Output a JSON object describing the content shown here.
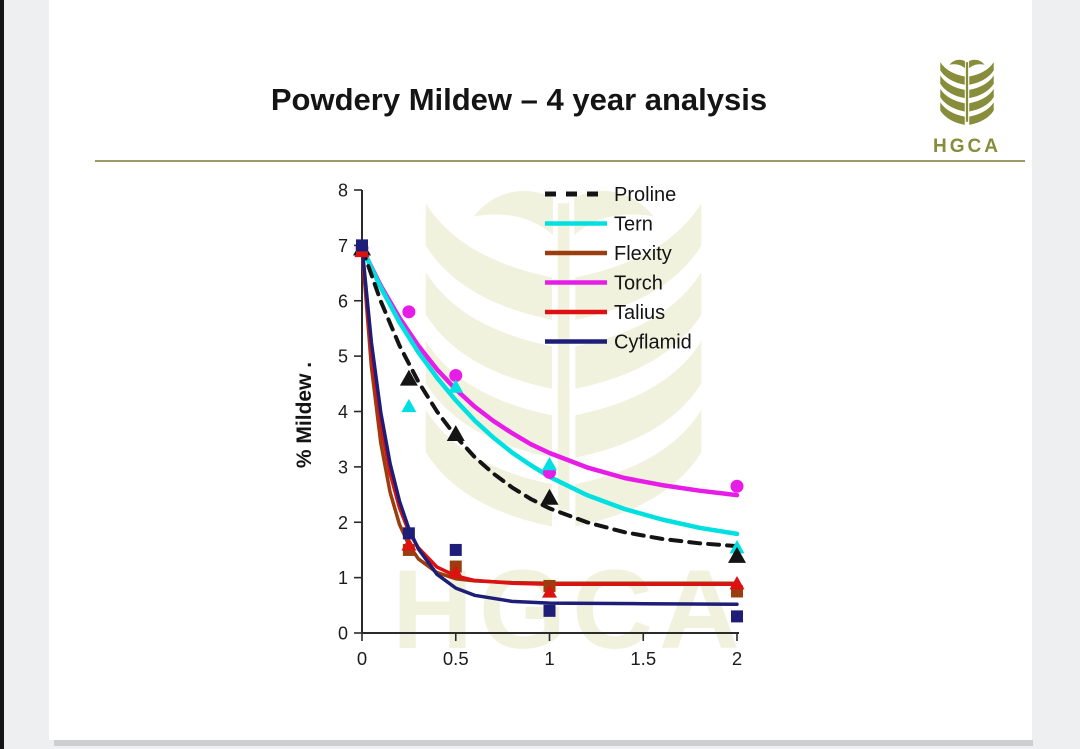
{
  "header": {
    "title": "Powdery Mildew – 4 year analysis",
    "rule_color": "#9b9b67"
  },
  "logo": {
    "text": "HGCA",
    "color": "#878d3b"
  },
  "watermark": {
    "text": "HGCA",
    "color": "#f1f2de"
  },
  "chart_data": {
    "type": "line",
    "title": "",
    "xlabel": "",
    "ylabel": "% Mildew .",
    "xlim": [
      0,
      2
    ],
    "ylim": [
      0,
      8
    ],
    "x_tick_labels": [
      "0",
      "0.5",
      "1",
      "1.5",
      "2"
    ],
    "x_tick_values": [
      0,
      0.5,
      1,
      1.5,
      2
    ],
    "y_tick_labels": [
      "0",
      "1",
      "2",
      "3",
      "4",
      "5",
      "6",
      "7",
      "8"
    ],
    "y_tick_values": [
      0,
      1,
      2,
      3,
      4,
      5,
      6,
      7,
      8
    ],
    "grid": false,
    "legend_position": "inside-top-right",
    "legend_order": [
      "Proline",
      "Tern",
      "Flexity",
      "Torch",
      "Talius",
      "Cyflamid"
    ],
    "series": [
      {
        "name": "Torch",
        "color": "#e71ce7",
        "line_style": "solid",
        "line_width": 4.5,
        "marker": "circle",
        "marker_size": 6.5,
        "points": [
          [
            0,
            6.95
          ],
          [
            0.25,
            5.8
          ],
          [
            0.5,
            4.65
          ],
          [
            1,
            2.9
          ],
          [
            2,
            2.65
          ]
        ],
        "curve": [
          [
            0,
            6.95
          ],
          [
            0.1,
            6.27
          ],
          [
            0.2,
            5.69
          ],
          [
            0.3,
            5.19
          ],
          [
            0.4,
            4.76
          ],
          [
            0.5,
            4.4
          ],
          [
            0.6,
            4.09
          ],
          [
            0.7,
            3.83
          ],
          [
            0.8,
            3.61
          ],
          [
            0.9,
            3.41
          ],
          [
            1,
            3.25
          ],
          [
            1.2,
            2.99
          ],
          [
            1.4,
            2.8
          ],
          [
            1.6,
            2.67
          ],
          [
            1.8,
            2.57
          ],
          [
            2,
            2.49
          ]
        ]
      },
      {
        "name": "Tern",
        "color": "#00e0e0",
        "line_style": "solid",
        "line_width": 4.5,
        "marker": "triangle",
        "marker_size": 7.5,
        "points": [
          [
            0,
            6.95
          ],
          [
            0.25,
            4.1
          ],
          [
            0.5,
            4.45
          ],
          [
            1,
            3.05
          ],
          [
            2,
            1.55
          ]
        ],
        "curve": [
          [
            0,
            6.95
          ],
          [
            0.1,
            6.24
          ],
          [
            0.2,
            5.61
          ],
          [
            0.3,
            5.07
          ],
          [
            0.4,
            4.61
          ],
          [
            0.5,
            4.2
          ],
          [
            0.6,
            3.84
          ],
          [
            0.7,
            3.53
          ],
          [
            0.8,
            3.26
          ],
          [
            0.9,
            3.03
          ],
          [
            1,
            2.82
          ],
          [
            1.2,
            2.49
          ],
          [
            1.4,
            2.24
          ],
          [
            1.6,
            2.05
          ],
          [
            1.8,
            1.9
          ],
          [
            2,
            1.79
          ]
        ]
      },
      {
        "name": "Proline",
        "color": "#141414",
        "line_style": "dashed",
        "line_width": 4,
        "marker": "triangle",
        "marker_size": 9,
        "points": [
          [
            0,
            6.95
          ],
          [
            0.25,
            4.6
          ],
          [
            0.5,
            3.6
          ],
          [
            1,
            2.45
          ],
          [
            2,
            1.4
          ]
        ],
        "curve": [
          [
            0,
            6.95
          ],
          [
            0.1,
            5.99
          ],
          [
            0.2,
            5.19
          ],
          [
            0.3,
            4.54
          ],
          [
            0.4,
            4.0
          ],
          [
            0.5,
            3.55
          ],
          [
            0.6,
            3.18
          ],
          [
            0.7,
            2.88
          ],
          [
            0.8,
            2.63
          ],
          [
            0.9,
            2.42
          ],
          [
            1,
            2.25
          ],
          [
            1.2,
            2.0
          ],
          [
            1.4,
            1.82
          ],
          [
            1.6,
            1.7
          ],
          [
            1.8,
            1.62
          ],
          [
            2,
            1.57
          ]
        ]
      },
      {
        "name": "Flexity",
        "color": "#9a3d0f",
        "line_style": "solid",
        "line_width": 3.5,
        "marker": "square",
        "marker_size": 6,
        "points": [
          [
            0,
            6.9
          ],
          [
            0.25,
            1.5
          ],
          [
            0.5,
            1.2
          ],
          [
            1,
            0.85
          ],
          [
            2,
            0.75
          ]
        ],
        "curve": [
          [
            0,
            6.95
          ],
          [
            0.05,
            4.81
          ],
          [
            0.1,
            3.43
          ],
          [
            0.15,
            2.54
          ],
          [
            0.2,
            1.96
          ],
          [
            0.25,
            1.59
          ],
          [
            0.3,
            1.34
          ],
          [
            0.4,
            1.09
          ],
          [
            0.5,
            0.98
          ],
          [
            0.6,
            0.94
          ],
          [
            0.8,
            0.91
          ],
          [
            1,
            0.9
          ],
          [
            1.5,
            0.9
          ],
          [
            2,
            0.9
          ]
        ]
      },
      {
        "name": "Talius",
        "color": "#dd1111",
        "line_style": "solid",
        "line_width": 3.5,
        "marker": "triangle",
        "marker_size": 7.5,
        "points": [
          [
            0,
            6.9
          ],
          [
            0.25,
            1.6
          ],
          [
            0.5,
            1.1
          ],
          [
            1,
            0.75
          ],
          [
            2,
            0.9
          ]
        ],
        "curve": [
          [
            0,
            6.95
          ],
          [
            0.05,
            5.07
          ],
          [
            0.1,
            3.77
          ],
          [
            0.15,
            2.88
          ],
          [
            0.2,
            2.26
          ],
          [
            0.25,
            1.83
          ],
          [
            0.3,
            1.54
          ],
          [
            0.4,
            1.19
          ],
          [
            0.5,
            1.03
          ],
          [
            0.6,
            0.95
          ],
          [
            0.8,
            0.9
          ],
          [
            1,
            0.88
          ],
          [
            1.5,
            0.88
          ],
          [
            2,
            0.88
          ]
        ]
      },
      {
        "name": "Cyflamid",
        "color": "#1e1e78",
        "line_style": "solid",
        "line_width": 3.5,
        "marker": "square",
        "marker_size": 6,
        "points": [
          [
            0,
            7.0
          ],
          [
            0.25,
            1.8
          ],
          [
            0.5,
            1.5
          ],
          [
            1,
            0.4
          ],
          [
            2,
            0.3
          ]
        ],
        "curve": [
          [
            0,
            6.98
          ],
          [
            0.05,
            5.25
          ],
          [
            0.1,
            3.98
          ],
          [
            0.15,
            3.06
          ],
          [
            0.2,
            2.38
          ],
          [
            0.25,
            1.88
          ],
          [
            0.3,
            1.52
          ],
          [
            0.4,
            1.06
          ],
          [
            0.5,
            0.81
          ],
          [
            0.6,
            0.68
          ],
          [
            0.8,
            0.57
          ],
          [
            1,
            0.54
          ],
          [
            1.5,
            0.53
          ],
          [
            2,
            0.52
          ]
        ]
      }
    ]
  }
}
